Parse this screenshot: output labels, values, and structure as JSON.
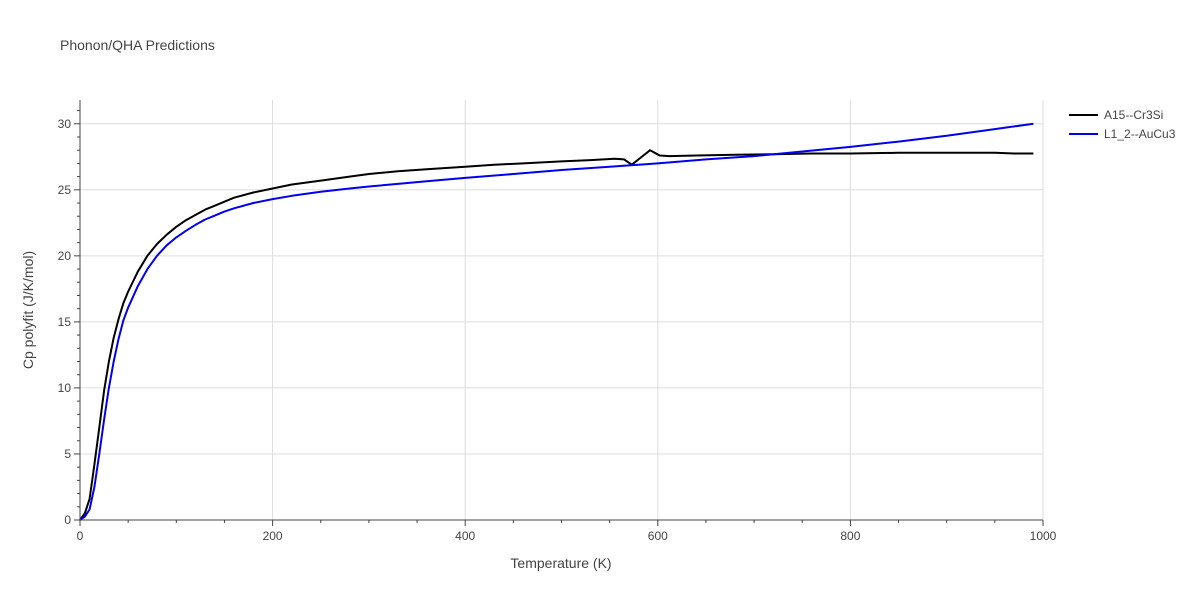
{
  "chart_data": {
    "type": "line",
    "title": "Phonon/QHA Predictions",
    "xlabel": "Temperature (K)",
    "ylabel": "Cp polyfit (J/K/mol)",
    "xlim": [
      0,
      1000
    ],
    "ylim": [
      0,
      31.8
    ],
    "xticks": [
      0,
      200,
      400,
      600,
      800,
      1000
    ],
    "xtick_labels": [
      "0",
      "200",
      "400",
      "600",
      "800",
      "1000"
    ],
    "yticks": [
      0,
      5,
      10,
      15,
      20,
      25,
      30
    ],
    "ytick_labels": [
      "0",
      "5",
      "10",
      "15",
      "20",
      "25",
      "30"
    ],
    "grid": true,
    "legend_position": "top-right",
    "series": [
      {
        "name": "A15--Cr3Si",
        "color": "#000000",
        "x": [
          0,
          5,
          10,
          15,
          20,
          25,
          30,
          35,
          40,
          45,
          50,
          60,
          70,
          80,
          90,
          100,
          110,
          120,
          130,
          140,
          150,
          160,
          180,
          200,
          220,
          250,
          280,
          300,
          330,
          360,
          400,
          430,
          460,
          500,
          530,
          555,
          565,
          573,
          580,
          592,
          602,
          612,
          640,
          680,
          720,
          760,
          800,
          850,
          900,
          950,
          970,
          990
        ],
        "y": [
          0,
          0.5,
          1.6,
          4.2,
          7.0,
          9.8,
          12.0,
          13.8,
          15.2,
          16.4,
          17.3,
          18.8,
          20.0,
          20.9,
          21.6,
          22.2,
          22.7,
          23.1,
          23.5,
          23.8,
          24.1,
          24.4,
          24.8,
          25.1,
          25.4,
          25.7,
          26.0,
          26.2,
          26.4,
          26.55,
          26.75,
          26.9,
          27.0,
          27.15,
          27.25,
          27.35,
          27.3,
          26.9,
          27.3,
          28.0,
          27.6,
          27.55,
          27.6,
          27.65,
          27.7,
          27.75,
          27.75,
          27.8,
          27.8,
          27.8,
          27.75,
          27.75
        ]
      },
      {
        "name": "L1_2--AuCu3",
        "color": "#0000ee",
        "x": [
          0,
          5,
          10,
          15,
          20,
          25,
          30,
          35,
          40,
          45,
          50,
          60,
          70,
          80,
          90,
          100,
          110,
          120,
          130,
          140,
          150,
          160,
          180,
          200,
          220,
          250,
          280,
          300,
          330,
          360,
          400,
          450,
          500,
          550,
          600,
          650,
          700,
          750,
          800,
          850,
          900,
          950,
          990
        ],
        "y": [
          0,
          0.25,
          0.8,
          2.5,
          5.0,
          7.6,
          10.0,
          12.0,
          13.7,
          15.1,
          16.1,
          17.7,
          19.0,
          20.0,
          20.8,
          21.4,
          21.9,
          22.35,
          22.75,
          23.05,
          23.35,
          23.6,
          24.0,
          24.3,
          24.55,
          24.85,
          25.1,
          25.25,
          25.45,
          25.65,
          25.9,
          26.2,
          26.5,
          26.75,
          27.0,
          27.3,
          27.55,
          27.9,
          28.25,
          28.65,
          29.1,
          29.6,
          30.0
        ]
      }
    ]
  }
}
